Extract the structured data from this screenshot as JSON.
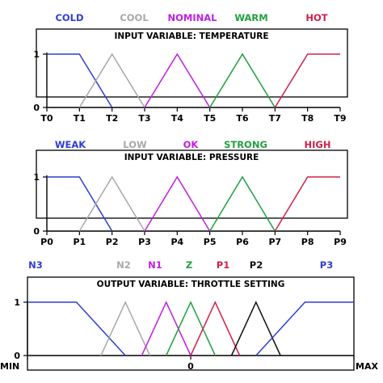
{
  "chart_data": [
    {
      "type": "line",
      "title": "INPUT VARIABLE: TEMPERATURE",
      "y_ticks": [
        "1",
        "0"
      ],
      "ylim": [
        0,
        1
      ],
      "x_ticks": [
        "T0",
        "T1",
        "T2",
        "T3",
        "T4",
        "T5",
        "T6",
        "T7",
        "T8",
        "T9"
      ],
      "xlim": [
        0,
        9
      ],
      "series": [
        {
          "name": "COLD",
          "color": "#2f3fd0",
          "x": [
            0,
            1,
            2
          ],
          "y": [
            1,
            1,
            0
          ]
        },
        {
          "name": "COOL",
          "color": "#a8a8a8",
          "x": [
            1,
            2,
            3
          ],
          "y": [
            0,
            1,
            0
          ]
        },
        {
          "name": "NOMINAL",
          "color": "#c020e0",
          "x": [
            3,
            4,
            5
          ],
          "y": [
            0,
            1,
            0
          ]
        },
        {
          "name": "WARM",
          "color": "#20a040",
          "x": [
            5,
            6,
            7
          ],
          "y": [
            0,
            1,
            0
          ]
        },
        {
          "name": "HOT",
          "color": "#d0204a",
          "x": [
            7,
            8,
            9
          ],
          "y": [
            0,
            1,
            1
          ]
        }
      ]
    },
    {
      "type": "line",
      "title": "INPUT VARIABLE: PRESSURE",
      "y_ticks": [
        "1",
        "0"
      ],
      "ylim": [
        0,
        1
      ],
      "x_ticks": [
        "P0",
        "P1",
        "P2",
        "P3",
        "P4",
        "P5",
        "P6",
        "P7",
        "P8",
        "P9"
      ],
      "xlim": [
        0,
        9
      ],
      "series": [
        {
          "name": "WEAK",
          "color": "#2f3fd0",
          "x": [
            0,
            1,
            2
          ],
          "y": [
            1,
            1,
            0
          ]
        },
        {
          "name": "LOW",
          "color": "#a8a8a8",
          "x": [
            1,
            2,
            3
          ],
          "y": [
            0,
            1,
            0
          ]
        },
        {
          "name": "OK",
          "color": "#c020e0",
          "x": [
            3,
            4,
            5
          ],
          "y": [
            0,
            1,
            0
          ]
        },
        {
          "name": "STRONG",
          "color": "#20a040",
          "x": [
            5,
            6,
            7
          ],
          "y": [
            0,
            1,
            0
          ]
        },
        {
          "name": "HIGH",
          "color": "#d0204a",
          "x": [
            7,
            8,
            9
          ],
          "y": [
            0,
            1,
            1
          ]
        }
      ]
    },
    {
      "type": "line",
      "title": "OUTPUT VARIABLE: THROTTLE SETTING",
      "y_ticks": [
        "1",
        "0"
      ],
      "ylim": [
        0,
        1
      ],
      "x_ticks": [
        "MIN",
        "0",
        "MAX"
      ],
      "xlim": [
        -1,
        1
      ],
      "series": [
        {
          "name": "N3",
          "color": "#2f3fd0",
          "x": [
            -1,
            -0.7,
            -0.4
          ],
          "y": [
            1,
            1,
            0
          ]
        },
        {
          "name": "N2",
          "color": "#a8a8a8",
          "x": [
            -0.55,
            -0.4,
            -0.25
          ],
          "y": [
            0,
            1,
            0
          ]
        },
        {
          "name": "N1",
          "color": "#c020e0",
          "x": [
            -0.3,
            -0.15,
            0
          ],
          "y": [
            0,
            1,
            0
          ]
        },
        {
          "name": "Z",
          "color": "#20a040",
          "x": [
            -0.15,
            0,
            0.15
          ],
          "y": [
            0,
            1,
            0
          ]
        },
        {
          "name": "P1",
          "color": "#d0204a",
          "x": [
            0,
            0.15,
            0.3
          ],
          "y": [
            0,
            1,
            0
          ]
        },
        {
          "name": "P2",
          "color": "#111111",
          "x": [
            0.25,
            0.4,
            0.55
          ],
          "y": [
            0,
            1,
            0
          ]
        },
        {
          "name": "P3",
          "color": "#2f3fd0",
          "x": [
            0.4,
            0.7,
            1
          ],
          "y": [
            0,
            1,
            1
          ]
        }
      ]
    }
  ]
}
